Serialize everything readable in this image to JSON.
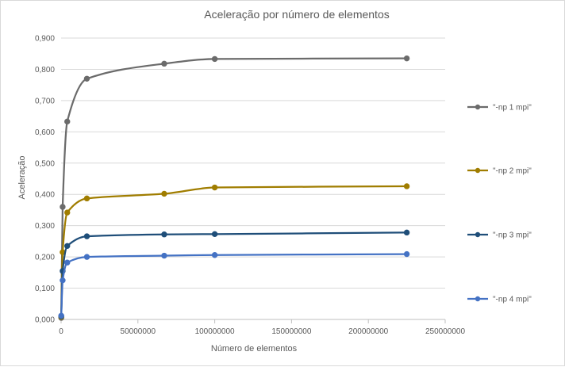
{
  "chart_data": {
    "type": "line",
    "title": "Aceleração por número de elementos",
    "xlabel": "Número de elementos",
    "ylabel": "Aceleração",
    "xlim": [
      0,
      250000000
    ],
    "ylim": [
      0,
      0.9
    ],
    "x_ticks": [
      "0",
      "50000000",
      "100000000",
      "150000000",
      "200000000",
      "250000000"
    ],
    "y_ticks": [
      "0,000",
      "0,100",
      "0,200",
      "0,300",
      "0,400",
      "0,500",
      "0,600",
      "0,700",
      "0,800",
      "0,900"
    ],
    "grid": "horizontal",
    "legend_position": "right",
    "series": [
      {
        "name": "\"-np 1 mpi\"",
        "color": "#6b6b6b",
        "points": [
          [
            100000,
            0.005
          ],
          [
            1000000,
            0.36
          ],
          [
            4000000,
            0.633
          ],
          [
            16777216,
            0.77
          ],
          [
            67108864,
            0.818
          ],
          [
            100000000,
            0.833
          ],
          [
            225000000,
            0.835
          ]
        ]
      },
      {
        "name": "\"-np 2 mpi\"",
        "color": "#a07d00",
        "points": [
          [
            100000,
            0.008
          ],
          [
            1000000,
            0.215
          ],
          [
            4000000,
            0.342
          ],
          [
            16777216,
            0.387
          ],
          [
            67108864,
            0.402
          ],
          [
            100000000,
            0.422
          ],
          [
            225000000,
            0.426
          ]
        ]
      },
      {
        "name": "\"-np 3 mpi\"",
        "color": "#1f4e79",
        "points": [
          [
            100000,
            0.01
          ],
          [
            1000000,
            0.155
          ],
          [
            4000000,
            0.235
          ],
          [
            16777216,
            0.266
          ],
          [
            67108864,
            0.272
          ],
          [
            100000000,
            0.273
          ],
          [
            225000000,
            0.278
          ]
        ]
      },
      {
        "name": "\"-np 4 mpi\"",
        "color": "#4472c4",
        "points": [
          [
            100000,
            0.012
          ],
          [
            1000000,
            0.125
          ],
          [
            4000000,
            0.182
          ],
          [
            16777216,
            0.2
          ],
          [
            67108864,
            0.204
          ],
          [
            100000000,
            0.206
          ],
          [
            225000000,
            0.209
          ]
        ]
      }
    ]
  }
}
